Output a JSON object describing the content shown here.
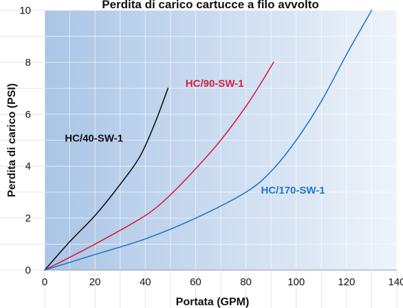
{
  "chart_data": {
    "type": "line",
    "title": "Perdita di carico cartucce a filo avvolto",
    "xlabel": "Portata (GPM)",
    "ylabel": "Perdita di carico (PSI)",
    "xlim": [
      0,
      140
    ],
    "ylim": [
      0,
      10
    ],
    "x_ticks": [
      "0",
      "20",
      "40",
      "60",
      "80",
      "100",
      "120",
      "140"
    ],
    "y_ticks": [
      "0",
      "2",
      "4",
      "6",
      "8",
      "10"
    ],
    "grid": true,
    "background": "blue-to-white horizontal gradient",
    "series": [
      {
        "name": "HC/40-SW-1",
        "color": "#111111",
        "label_color": "#111111",
        "points": [
          [
            0,
            0
          ],
          [
            10,
            1.1
          ],
          [
            20,
            2.1
          ],
          [
            30,
            3.3
          ],
          [
            38,
            4.4
          ],
          [
            44,
            5.7
          ],
          [
            49,
            7.0
          ]
        ]
      },
      {
        "name": "HC/90-SW-1",
        "color": "#d81e3c",
        "label_color": "#d81e3c",
        "points": [
          [
            0,
            0
          ],
          [
            20,
            1.0
          ],
          [
            40,
            2.1
          ],
          [
            50,
            2.9
          ],
          [
            60,
            3.9
          ],
          [
            70,
            5.0
          ],
          [
            80,
            6.3
          ],
          [
            86,
            7.2
          ],
          [
            91,
            8.0
          ]
        ]
      },
      {
        "name": "HC/170-SW-1",
        "color": "#1e78c8",
        "label_color": "#1e78c8",
        "points": [
          [
            0,
            0
          ],
          [
            20,
            0.6
          ],
          [
            40,
            1.2
          ],
          [
            60,
            2.0
          ],
          [
            80,
            3.0
          ],
          [
            90,
            3.8
          ],
          [
            100,
            5.0
          ],
          [
            110,
            6.5
          ],
          [
            120,
            8.3
          ],
          [
            130,
            10.0
          ]
        ]
      }
    ]
  }
}
